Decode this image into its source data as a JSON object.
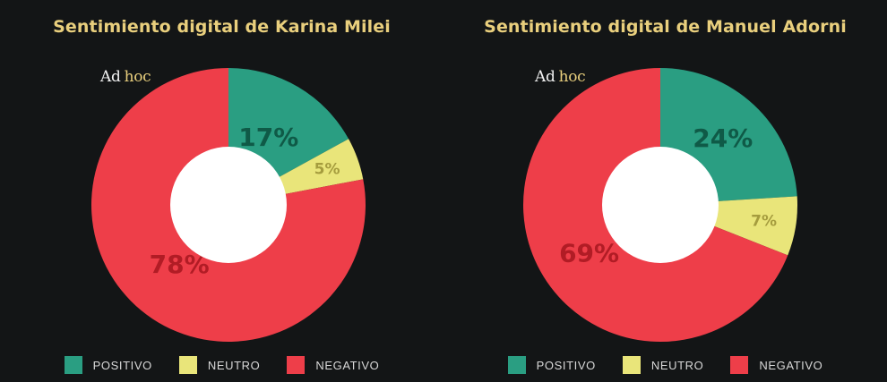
{
  "chart_data": [
    {
      "type": "pie",
      "title": "Sentimiento digital de Karina Milei",
      "categories": [
        "POSITIVO",
        "NEUTRO",
        "NEGATIVO"
      ],
      "values": [
        17,
        5,
        78
      ],
      "labels": [
        "17%",
        "5%",
        "78%"
      ],
      "colors": [
        "#2a9e82",
        "#e9e57a",
        "#ee3e49"
      ],
      "label_colors": [
        "#0f5a47",
        "#a59c3e",
        "#b11c25"
      ],
      "donut": true,
      "legend": "bottom"
    },
    {
      "type": "pie",
      "title": "Sentimiento digital de Manuel Adorni",
      "categories": [
        "POSITIVO",
        "NEUTRO",
        "NEGATIVO"
      ],
      "values": [
        24,
        7,
        69
      ],
      "labels": [
        "24%",
        "7%",
        "69%"
      ],
      "colors": [
        "#2a9e82",
        "#e9e57a",
        "#ee3e49"
      ],
      "label_colors": [
        "#0f5a47",
        "#a59c3e",
        "#b11c25"
      ],
      "donut": true,
      "legend": "bottom"
    }
  ],
  "brand": {
    "part1": "Ad",
    "part2": "hoc"
  },
  "colors": {
    "background": "#131516",
    "title": "#e9cf7d"
  }
}
